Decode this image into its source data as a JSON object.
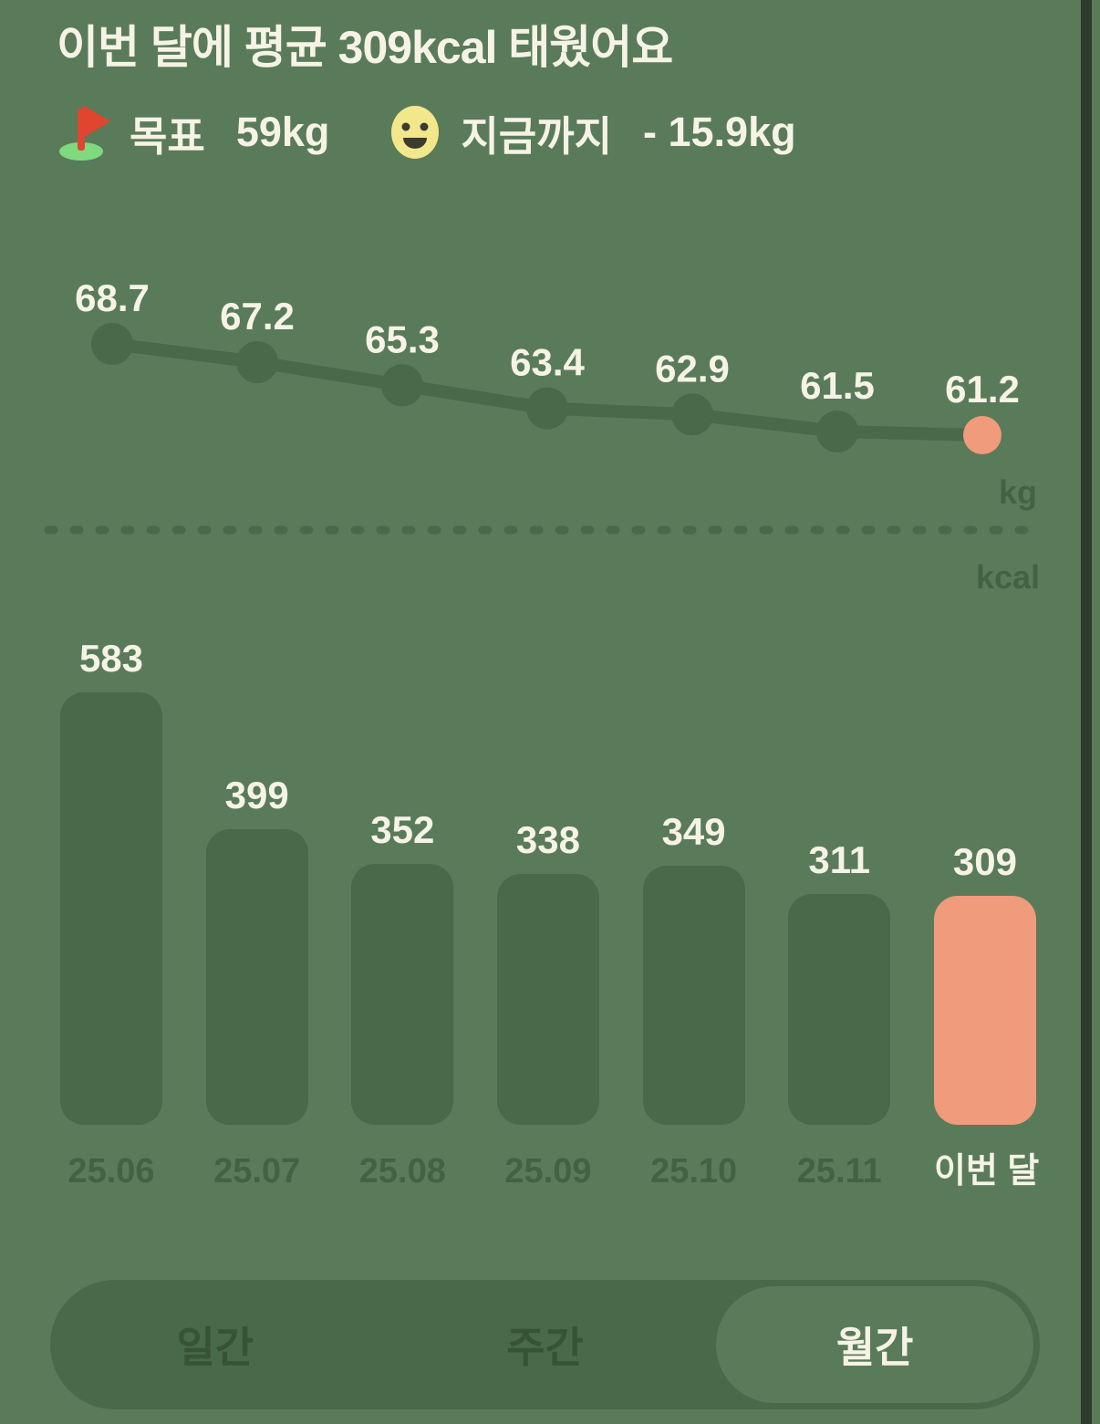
{
  "title": "이번 달에 평균 309kcal 태웠어요",
  "summary": {
    "goal_label": "목표",
    "goal_value": "59kg",
    "progress_label": "지금까지",
    "progress_value": "- 15.9kg"
  },
  "icons": {
    "goal": "goal-flag-icon",
    "progress": "smiley-face-icon"
  },
  "chart_data": [
    {
      "type": "line",
      "unit": "kg",
      "values": [
        68.7,
        67.2,
        65.3,
        63.4,
        62.9,
        61.5,
        61.2
      ],
      "point_labels": [
        "68.7",
        "67.2",
        "65.3",
        "63.4",
        "62.9",
        "61.5",
        "61.2"
      ],
      "highlight_index": 6,
      "grid": false,
      "ylim": [
        60,
        70
      ]
    },
    {
      "type": "bar",
      "unit": "kcal",
      "categories": [
        "25.06",
        "25.07",
        "25.08",
        "25.09",
        "25.10",
        "25.11",
        "이번 달"
      ],
      "values": [
        583,
        399,
        352,
        338,
        349,
        311,
        309
      ],
      "highlight_index": 6,
      "grid": false,
      "ylim": [
        0,
        670
      ]
    }
  ],
  "tabs": [
    {
      "id": "daily",
      "label": "일간",
      "selected": false
    },
    {
      "id": "weekly",
      "label": "주간",
      "selected": false
    },
    {
      "id": "monthly",
      "label": "월간",
      "selected": true
    }
  ],
  "colors": {
    "background": "#597B59",
    "dark_green": "#48694A",
    "deep_green_text": "#436243",
    "cream_text": "#F6F3E6",
    "salmon_highlight": "#F09B7C",
    "scrollbar": "#2C3C2C",
    "flag_red": "#E0452F",
    "mound_green": "#7FD97F",
    "smiley_yellow": "#F3E78C",
    "smiley_face": "#3B3B33",
    "unselected_tab_text": "#365237"
  }
}
